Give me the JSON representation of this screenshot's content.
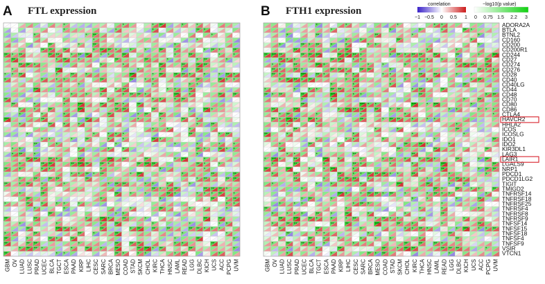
{
  "figure": {
    "legend": {
      "corr_title": "correlation",
      "corr_ticks": [
        "−1",
        "−0.5",
        "0",
        "0.5",
        "1"
      ],
      "p_title": "−log10(p value)",
      "p_ticks": [
        "0",
        "0.75",
        "1.5",
        "2.2",
        "3"
      ],
      "colors": {
        "neg": "#3a22c8",
        "mid": "#ffffff",
        "pos": "#cc1b1b",
        "p_low": "#ffffff",
        "p_high": "#11d111"
      }
    },
    "highlight_color": "#d8202a"
  },
  "chart_data": [
    {
      "type": "heatmap",
      "panel": "A",
      "title": "FTL expression",
      "y_categories": [
        "ADORA2A",
        "BTLA",
        "BTNL2",
        "CD160",
        "CD200",
        "CD200R1",
        "CD244",
        "CD27",
        "CD274",
        "CD276",
        "CD28",
        "CD40",
        "CD40LG",
        "CD44",
        "CD48",
        "CD70",
        "CD80",
        "CD86",
        "CTLA4",
        "HAVCR2",
        "HHLA2",
        "ICOS",
        "ICOSLG",
        "IDO1",
        "IDO2",
        "KIR3DL1",
        "LAG3",
        "LAIR1",
        "LGALS9",
        "NRP1",
        "PDCD1",
        "PDCD1LG2",
        "TIGIT",
        "TMIGD2",
        "TNFRSF14",
        "TNFRSF18",
        "TNFRSF25",
        "TNFRSF4",
        "TNFRSF8",
        "TNFRSF9",
        "TNFSF14",
        "TNFSF15",
        "TNFSF18",
        "TNFSF4",
        "TNFSF9",
        "VSIR",
        "VTCN1"
      ],
      "x_categories": [
        "GBM",
        "OV",
        "LUAD",
        "LUSC",
        "PRAD",
        "UCEC",
        "BLCA",
        "TGCT",
        "ESCA",
        "PAAD",
        "KIRP",
        "LIHC",
        "CESC",
        "SARC",
        "BRCA",
        "MESO",
        "COAD",
        "STAD",
        "SKCM",
        "CHOL",
        "KIRC",
        "THCA",
        "HNSC",
        "LAML",
        "READ",
        "LGG",
        "DLBC",
        "KICH",
        "UCS",
        "ACC",
        "PCPG",
        "UVM"
      ],
      "highlighted_genes": [
        "HAVCR2",
        "LAIR1"
      ]
    },
    {
      "type": "heatmap",
      "panel": "B",
      "title": "FTH1 expression",
      "y_categories": [
        "ADORA2A",
        "BTLA",
        "BTNL2",
        "CD160",
        "CD200",
        "CD200R1",
        "CD244",
        "CD27",
        "CD274",
        "CD276",
        "CD28",
        "CD40",
        "CD40LG",
        "CD44",
        "CD48",
        "CD70",
        "CD80",
        "CD86",
        "CTLA4",
        "HAVCR2",
        "HHLA2",
        "ICOS",
        "ICOSLG",
        "IDO1",
        "IDO2",
        "KIR3DL1",
        "LAG3",
        "LAIR1",
        "LGALS9",
        "NRP1",
        "PDCD1",
        "PDCD1LG2",
        "TIGIT",
        "TMIGD2",
        "TNFRSF14",
        "TNFRSF18",
        "TNFRSF25",
        "TNFRSF4",
        "TNFRSF8",
        "TNFRSF9",
        "TNFSF14",
        "TNFSF15",
        "TNFSF18",
        "TNFSF4",
        "TNFSF9",
        "VSIR",
        "VTCN1"
      ],
      "x_categories": [
        "GBM",
        "OV",
        "LUAD",
        "LUSC",
        "PRAD",
        "UCEC",
        "BLCA",
        "TGCT",
        "ESCA",
        "PAAD",
        "KIRP",
        "LIHC",
        "CESC",
        "SARC",
        "BRCA",
        "MESO",
        "COAD",
        "STAD",
        "SKCM",
        "CHOL",
        "KIRC",
        "THCA",
        "HNSC",
        "LAML",
        "READ",
        "LGG",
        "DLBC",
        "KICH",
        "UCS",
        "ACC",
        "PCPG",
        "UVM"
      ],
      "highlighted_genes": [
        "HAVCR2",
        "LAIR1"
      ]
    }
  ]
}
